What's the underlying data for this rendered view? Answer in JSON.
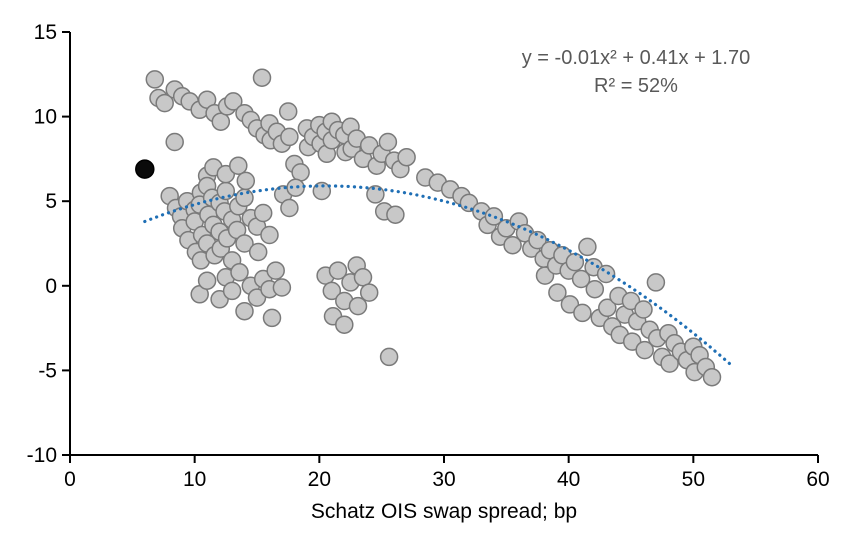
{
  "chart_data": {
    "type": "scatter",
    "title": "",
    "xlabel": "Schatz OIS swap spread; bp",
    "ylabel": "",
    "xlim": [
      0,
      60
    ],
    "ylim": [
      -10,
      15
    ],
    "xticks": [
      0,
      10,
      20,
      30,
      40,
      50,
      60
    ],
    "yticks": [
      -10,
      -5,
      0,
      5,
      10,
      15
    ],
    "grid": false,
    "legend": "none",
    "annotation": {
      "line1": "y = -0.01x² + 0.41x + 1.70",
      "line2": "R² = 52%",
      "color": "#595959"
    },
    "trendline": {
      "type": "quadratic",
      "a": -0.01,
      "b": 0.41,
      "c": 1.7,
      "r_squared_pct": 52,
      "x_start": 6,
      "x_end": 53,
      "color": "#1f6fb5",
      "style": "dotted"
    },
    "series": [
      {
        "name": "observations",
        "fill": "#c8c8c8",
        "stroke": "#7a7a7a",
        "radius": 8.5,
        "points": [
          [
            6.8,
            12.2
          ],
          [
            7.1,
            11.1
          ],
          [
            7.6,
            10.8
          ],
          [
            8.4,
            11.6
          ],
          [
            9.0,
            11.2
          ],
          [
            9.6,
            10.9
          ],
          [
            10.4,
            10.4
          ],
          [
            11.0,
            11.0
          ],
          [
            11.6,
            10.2
          ],
          [
            12.1,
            9.7
          ],
          [
            12.6,
            10.6
          ],
          [
            13.1,
            10.9
          ],
          [
            8.4,
            8.5
          ],
          [
            8.0,
            5.3
          ],
          [
            8.5,
            4.6
          ],
          [
            8.9,
            4.1
          ],
          [
            9.0,
            3.4
          ],
          [
            9.4,
            5.0
          ],
          [
            9.5,
            2.7
          ],
          [
            10.0,
            4.5
          ],
          [
            10.0,
            3.8
          ],
          [
            10.1,
            2.0
          ],
          [
            10.5,
            5.5
          ],
          [
            10.4,
            4.8
          ],
          [
            10.6,
            3.0
          ],
          [
            10.5,
            1.5
          ],
          [
            11.0,
            6.5
          ],
          [
            11.0,
            5.9
          ],
          [
            11.1,
            4.2
          ],
          [
            11.0,
            2.5
          ],
          [
            11.5,
            7.0
          ],
          [
            11.4,
            5.2
          ],
          [
            11.5,
            3.6
          ],
          [
            11.6,
            1.8
          ],
          [
            12.0,
            4.9
          ],
          [
            12.0,
            3.2
          ],
          [
            12.1,
            2.2
          ],
          [
            12.5,
            5.6
          ],
          [
            12.4,
            4.4
          ],
          [
            12.6,
            2.8
          ],
          [
            13.0,
            3.9
          ],
          [
            13.0,
            1.5
          ],
          [
            13.5,
            4.7
          ],
          [
            13.4,
            3.3
          ],
          [
            14.0,
            5.2
          ],
          [
            14.0,
            2.5
          ],
          [
            14.5,
            4.0
          ],
          [
            15.0,
            3.5
          ],
          [
            15.1,
            2.0
          ],
          [
            15.5,
            4.3
          ],
          [
            16.0,
            3.0
          ],
          [
            12.5,
            6.6
          ],
          [
            13.5,
            7.1
          ],
          [
            14.1,
            6.2
          ],
          [
            10.4,
            -0.5
          ],
          [
            11.0,
            0.3
          ],
          [
            12.0,
            -0.8
          ],
          [
            12.5,
            0.5
          ],
          [
            13.0,
            -0.3
          ],
          [
            13.6,
            0.8
          ],
          [
            14.0,
            -1.5
          ],
          [
            14.5,
            0.0
          ],
          [
            15.0,
            -0.7
          ],
          [
            15.5,
            0.4
          ],
          [
            16.0,
            -0.2
          ],
          [
            16.5,
            0.9
          ],
          [
            17.0,
            -0.1
          ],
          [
            16.2,
            -1.9
          ],
          [
            15.4,
            12.3
          ],
          [
            14.0,
            10.2
          ],
          [
            14.5,
            9.8
          ],
          [
            15.0,
            9.3
          ],
          [
            15.6,
            8.9
          ],
          [
            16.0,
            9.6
          ],
          [
            16.1,
            8.6
          ],
          [
            16.6,
            9.1
          ],
          [
            17.0,
            8.4
          ],
          [
            17.5,
            10.3
          ],
          [
            17.6,
            8.8
          ],
          [
            18.0,
            7.2
          ],
          [
            18.5,
            6.7
          ],
          [
            19.0,
            9.3
          ],
          [
            19.1,
            8.2
          ],
          [
            19.5,
            8.8
          ],
          [
            20.0,
            9.5
          ],
          [
            20.1,
            8.4
          ],
          [
            20.5,
            9.1
          ],
          [
            20.6,
            7.8
          ],
          [
            21.0,
            9.7
          ],
          [
            21.0,
            8.6
          ],
          [
            21.5,
            9.2
          ],
          [
            22.0,
            8.9
          ],
          [
            22.1,
            7.9
          ],
          [
            22.5,
            9.4
          ],
          [
            22.6,
            8.1
          ],
          [
            23.0,
            8.7
          ],
          [
            23.5,
            7.5
          ],
          [
            24.0,
            8.3
          ],
          [
            24.6,
            7.1
          ],
          [
            25.0,
            7.8
          ],
          [
            25.5,
            8.5
          ],
          [
            26.0,
            7.4
          ],
          [
            26.5,
            6.9
          ],
          [
            27.0,
            7.6
          ],
          [
            20.2,
            5.6
          ],
          [
            24.5,
            5.4
          ],
          [
            25.2,
            4.4
          ],
          [
            17.1,
            5.4
          ],
          [
            17.6,
            4.6
          ],
          [
            18.1,
            5.8
          ],
          [
            26.1,
            4.2
          ],
          [
            20.5,
            0.6
          ],
          [
            21.0,
            -0.3
          ],
          [
            21.1,
            -1.8
          ],
          [
            21.5,
            0.9
          ],
          [
            22.0,
            -0.9
          ],
          [
            22.0,
            -2.3
          ],
          [
            22.5,
            0.2
          ],
          [
            23.0,
            1.2
          ],
          [
            23.1,
            -1.2
          ],
          [
            23.5,
            0.5
          ],
          [
            24.0,
            -0.4
          ],
          [
            25.6,
            -4.2
          ],
          [
            28.5,
            6.4
          ],
          [
            29.5,
            6.1
          ],
          [
            30.5,
            5.7
          ],
          [
            31.4,
            5.3
          ],
          [
            32.0,
            4.9
          ],
          [
            33.0,
            4.4
          ],
          [
            33.5,
            3.6
          ],
          [
            34.0,
            4.1
          ],
          [
            34.5,
            2.9
          ],
          [
            35.0,
            3.4
          ],
          [
            35.5,
            2.4
          ],
          [
            36.0,
            3.8
          ],
          [
            36.5,
            3.1
          ],
          [
            37.0,
            2.2
          ],
          [
            37.5,
            2.7
          ],
          [
            38.0,
            1.6
          ],
          [
            38.1,
            0.6
          ],
          [
            38.5,
            2.1
          ],
          [
            39.0,
            1.2
          ],
          [
            39.1,
            -0.4
          ],
          [
            39.5,
            1.8
          ],
          [
            40.0,
            0.9
          ],
          [
            40.1,
            -1.1
          ],
          [
            40.5,
            1.4
          ],
          [
            41.0,
            0.4
          ],
          [
            41.1,
            -1.6
          ],
          [
            41.5,
            2.3
          ],
          [
            42.0,
            1.1
          ],
          [
            42.1,
            -0.2
          ],
          [
            42.5,
            -1.9
          ],
          [
            43.0,
            0.7
          ],
          [
            43.1,
            -1.3
          ],
          [
            43.5,
            -2.4
          ],
          [
            44.0,
            -0.6
          ],
          [
            44.1,
            -2.9
          ],
          [
            44.5,
            -1.7
          ],
          [
            45.0,
            -0.9
          ],
          [
            45.1,
            -3.3
          ],
          [
            45.5,
            -2.1
          ],
          [
            46.0,
            -1.4
          ],
          [
            46.1,
            -3.8
          ],
          [
            46.5,
            -2.6
          ],
          [
            47.0,
            0.2
          ],
          [
            47.1,
            -3.1
          ],
          [
            47.5,
            -4.2
          ],
          [
            48.0,
            -2.8
          ],
          [
            48.1,
            -4.6
          ],
          [
            48.5,
            -3.4
          ],
          [
            49.0,
            -3.9
          ],
          [
            49.5,
            -4.4
          ],
          [
            50.0,
            -3.6
          ],
          [
            50.1,
            -5.1
          ],
          [
            50.5,
            -4.1
          ],
          [
            51.0,
            -4.8
          ],
          [
            51.5,
            -5.4
          ]
        ]
      },
      {
        "name": "highlighted",
        "fill": "#0a0a0a",
        "stroke": "#000000",
        "radius": 9,
        "points": [
          [
            6.0,
            6.9
          ]
        ]
      }
    ]
  }
}
